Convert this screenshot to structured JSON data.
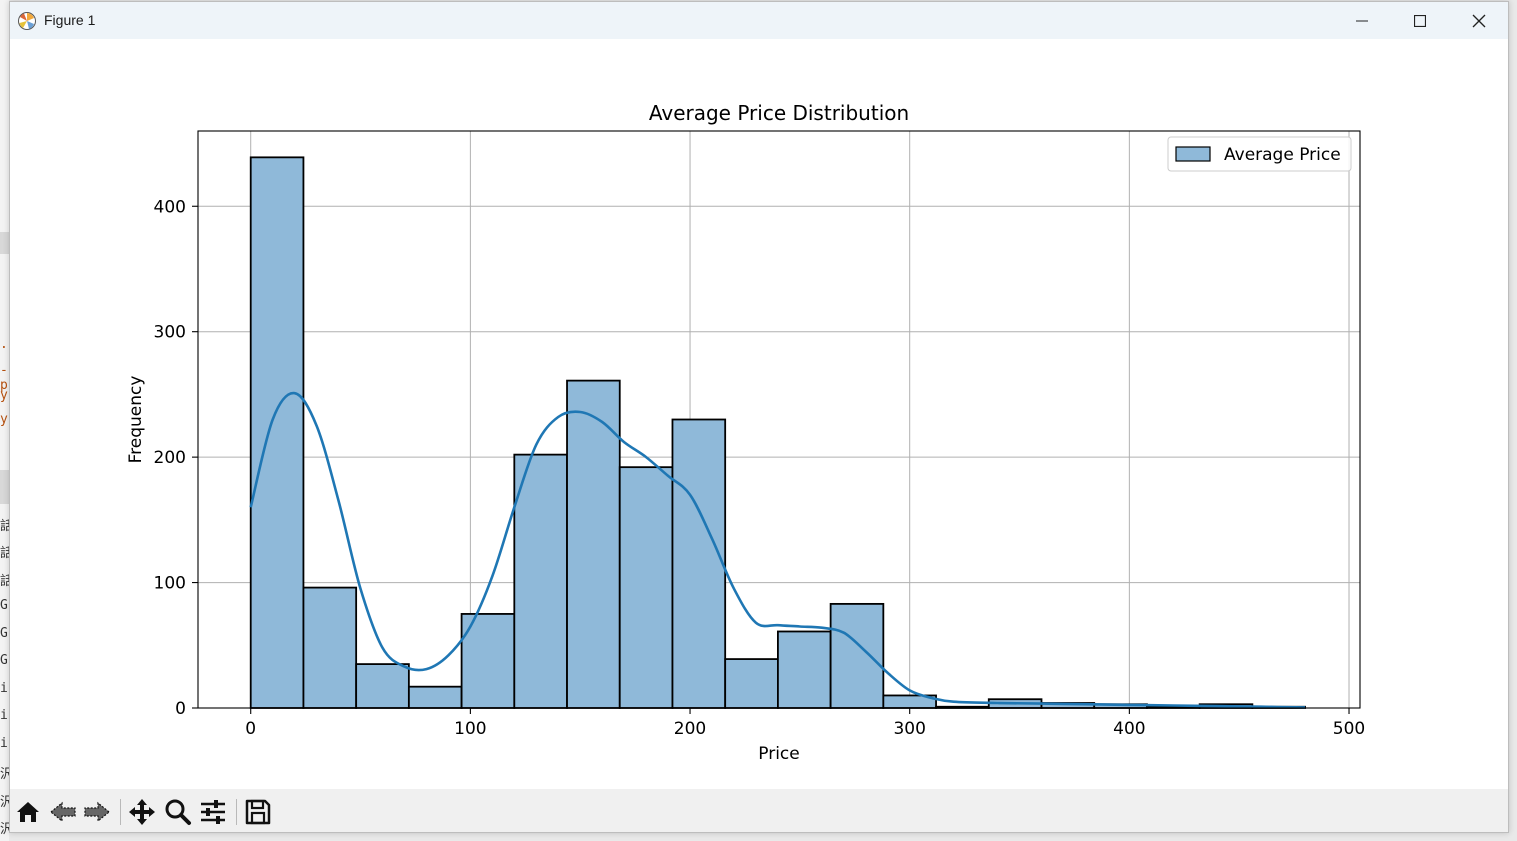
{
  "window": {
    "title": "Figure 1",
    "controls": [
      "minimize",
      "maximize",
      "close"
    ]
  },
  "toolbar": {
    "tools": [
      "home-icon",
      "back-arrow-icon",
      "forward-arrow-icon",
      "pan-icon",
      "zoom-icon",
      "configure-subplots-icon",
      "save-icon"
    ]
  },
  "chart_data": {
    "type": "bar",
    "title": "Average Price Distribution",
    "xlabel": "Price",
    "ylabel": "Frequency",
    "xlim": [
      -24,
      505
    ],
    "ylim": [
      0,
      460
    ],
    "xticks": [
      0,
      100,
      200,
      300,
      400,
      500
    ],
    "yticks": [
      0,
      100,
      200,
      300,
      400
    ],
    "grid": true,
    "legend": {
      "position": "top-right",
      "entries": [
        "Average Price"
      ]
    },
    "bar_color": "#8fb9d9",
    "kde_color": "#1f77b4",
    "bins": [
      {
        "x0": 0,
        "x1": 24,
        "count": 439
      },
      {
        "x0": 24,
        "x1": 48,
        "count": 96
      },
      {
        "x0": 48,
        "x1": 72,
        "count": 35
      },
      {
        "x0": 72,
        "x1": 96,
        "count": 17
      },
      {
        "x0": 96,
        "x1": 120,
        "count": 75
      },
      {
        "x0": 120,
        "x1": 144,
        "count": 202
      },
      {
        "x0": 144,
        "x1": 168,
        "count": 261
      },
      {
        "x0": 168,
        "x1": 192,
        "count": 192
      },
      {
        "x0": 192,
        "x1": 216,
        "count": 230
      },
      {
        "x0": 216,
        "x1": 240,
        "count": 39
      },
      {
        "x0": 240,
        "x1": 264,
        "count": 61
      },
      {
        "x0": 264,
        "x1": 288,
        "count": 83
      },
      {
        "x0": 288,
        "x1": 312,
        "count": 10
      },
      {
        "x0": 312,
        "x1": 336,
        "count": 1
      },
      {
        "x0": 336,
        "x1": 360,
        "count": 7
      },
      {
        "x0": 360,
        "x1": 384,
        "count": 4
      },
      {
        "x0": 384,
        "x1": 408,
        "count": 3
      },
      {
        "x0": 408,
        "x1": 432,
        "count": 1
      },
      {
        "x0": 432,
        "x1": 456,
        "count": 3
      },
      {
        "x0": 456,
        "x1": 480,
        "count": 1
      }
    ],
    "kde": {
      "name": "KDE",
      "x": [
        0,
        10,
        20,
        30,
        40,
        50,
        60,
        70,
        80,
        90,
        100,
        110,
        120,
        130,
        140,
        150,
        160,
        170,
        180,
        190,
        200,
        210,
        220,
        230,
        240,
        250,
        260,
        270,
        280,
        290,
        300,
        310,
        320,
        340,
        360,
        380,
        400,
        420,
        440,
        460,
        480
      ],
      "y": [
        160,
        230,
        251,
        225,
        165,
        95,
        48,
        33,
        31,
        42,
        65,
        105,
        160,
        210,
        232,
        236,
        228,
        212,
        200,
        185,
        170,
        135,
        95,
        68,
        66,
        65,
        64,
        60,
        45,
        28,
        14,
        8,
        5,
        4,
        3.5,
        3,
        2.5,
        2,
        1.5,
        1,
        0.5
      ]
    }
  }
}
